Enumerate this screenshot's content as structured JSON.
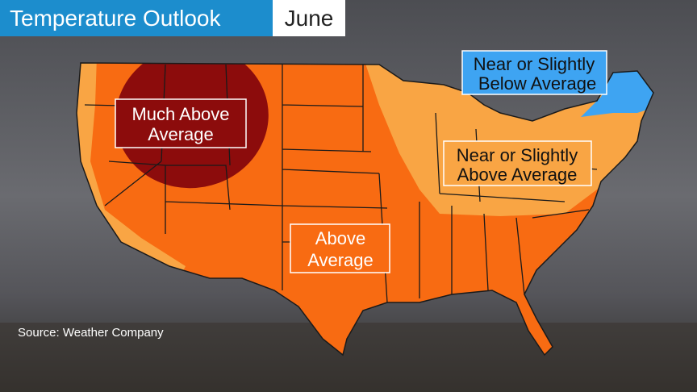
{
  "header": {
    "title": "Temperature Outlook",
    "month": "June"
  },
  "regions": [
    {
      "label_lines": [
        "Much Above",
        "Average"
      ],
      "color": "#8c0c0c"
    },
    {
      "label_lines": [
        "Near or Slightly",
        "Below Average"
      ],
      "color": "#3ea4f2"
    },
    {
      "label_lines": [
        "Near or Slightly",
        "Above Average"
      ],
      "color": "#f9a544"
    },
    {
      "label_lines": [
        "Above",
        "Average"
      ],
      "color": "#f86b12"
    }
  ],
  "source": "Source: Weather Company"
}
